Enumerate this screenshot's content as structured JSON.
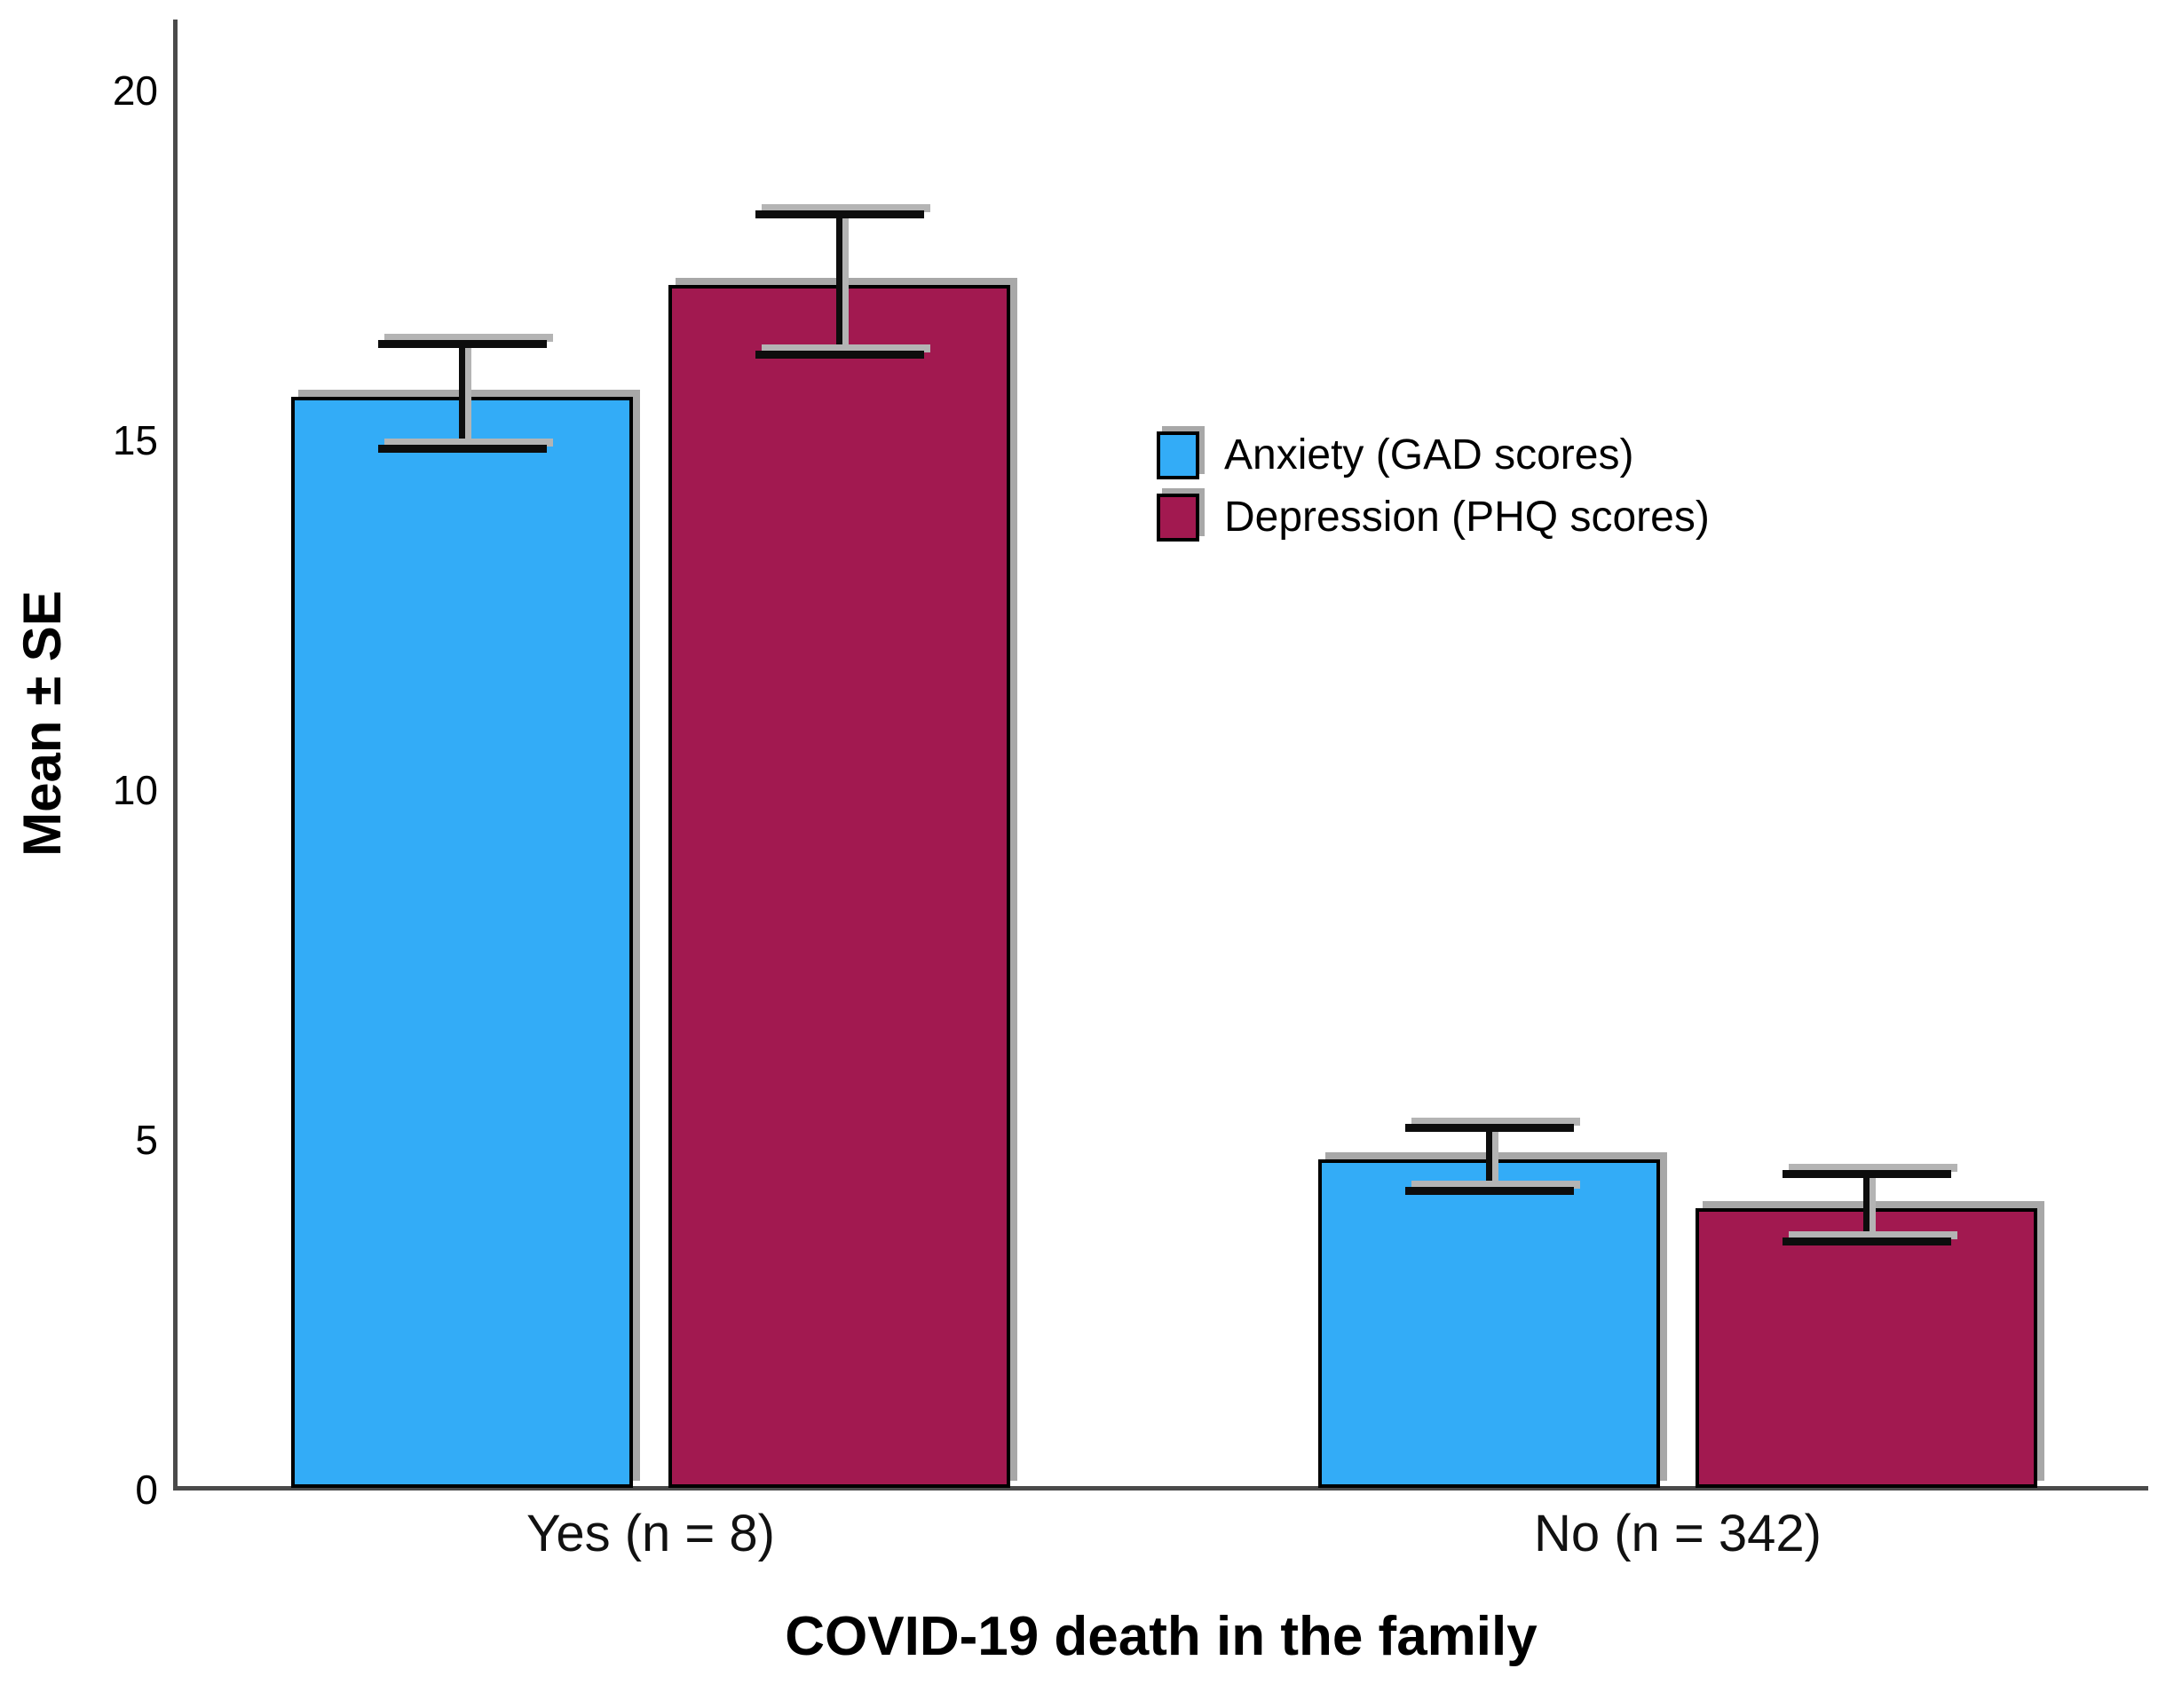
{
  "chart_data": {
    "type": "bar",
    "title": "",
    "xlabel": "COVID-19 death in the family",
    "ylabel": "Mean ± SE",
    "categories": [
      "Yes (n = 8)",
      "No (n = 342)"
    ],
    "series": [
      {
        "name": "Anxiety (GAD scores)",
        "color": "#33ACF7",
        "means": [
          15.6,
          4.7
        ],
        "se": [
          0.75,
          0.45
        ]
      },
      {
        "name": "Depression (PHQ scores)",
        "color": "#A21950",
        "means": [
          17.2,
          4.0
        ],
        "se": [
          1.0,
          0.48
        ]
      }
    ],
    "ylim": [
      0,
      21
    ],
    "yticks": [
      0,
      5,
      10,
      15,
      20
    ],
    "error_bars": "mean ± SE",
    "grid": false,
    "legend_position": "center-right",
    "axis_color": "#4a4a4a",
    "bar_border_color": "#000000",
    "shadow_color": "#a8a8a8"
  }
}
